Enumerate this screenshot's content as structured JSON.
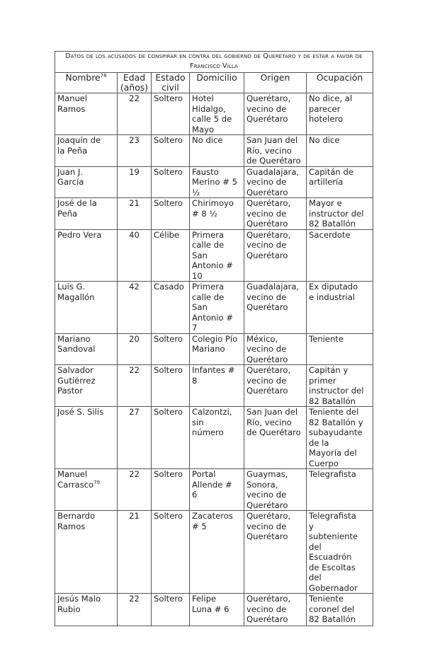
{
  "title": "Datos de los acusados de conspirar en contra del gobierno de Queretaro y de estar a favor de Francisco Villa",
  "headers": {
    "nombre": "Nombre",
    "nombre_note": "78",
    "edad": "Edad\n(años)",
    "estado": "Estado\ncivil",
    "domicilio": "Domicilio",
    "origen": "Origen",
    "ocupacion": "Ocupación"
  },
  "rows": [
    {
      "nombre": "Manuel\nRamos",
      "edad": "22",
      "estado": "Soltero",
      "domicilio": "Hotel\nHidalgo,\ncalle 5 de\nMayo",
      "origen": "Querétaro,\nvecino de\nQuerétaro",
      "ocupacion": "No dice, al\nparecer\nhotelero"
    },
    {
      "nombre": "Joaquín      de\nla Peña",
      "edad": "23",
      "estado": "Soltero",
      "domicilio": "No dice",
      "origen": "San Juan del\nRío, vecino\nde Querétaro",
      "ocupacion": "No dice"
    },
    {
      "nombre": "Juan        J.\nGarcía",
      "edad": "19",
      "estado": "Soltero",
      "domicilio": "Fausto\nMerino # 5\n½",
      "origen": "Guadalajara,\nvecino de\nQuerétaro",
      "ocupacion": "Capitán de\nartillería"
    },
    {
      "nombre": "José   de   la\nPeña",
      "edad": "21",
      "estado": "Soltero",
      "domicilio": "Chirimoyo\n# 8 ½",
      "origen": "Querétaro,\nvecino de\nQuerétaro",
      "ocupacion": "Mayor e\ninstructor del\n82 Batallón"
    },
    {
      "nombre": "Pedro Vera",
      "edad": "40",
      "estado": "Célibe",
      "domicilio": "Primera\ncalle de\nSan\nAntonio #\n10",
      "origen": "Querétaro,\nvecino de\nQuerétaro",
      "ocupacion": "Sacerdote"
    },
    {
      "nombre": "Luis        G.\nMagallón",
      "edad": "42",
      "estado": "Casado",
      "domicilio": "Primera\ncalle de\nSan\nAntonio #\n7",
      "origen": "Guadalajara,\nvecino de\nQuerétaro",
      "ocupacion": "Ex diputado\ne industrial"
    },
    {
      "nombre": "Mariano\nSandoval",
      "edad": "20",
      "estado": "Soltero",
      "domicilio": "Colegio Pío\nMariano",
      "origen": "México,\nvecino de\nQuerétaro",
      "ocupacion": "Teniente"
    },
    {
      "nombre": "Salvador\nGutiérrez\nPastor",
      "edad": "22",
      "estado": "Soltero",
      "domicilio": "Infantes #\n8",
      "origen": "Querétaro,\nvecino de\nQuerétaro",
      "ocupacion": "Capitán y\nprimer\ninstructor del\n82 Batallón"
    },
    {
      "nombre": "José S. Silis",
      "edad": "27",
      "estado": "Soltero",
      "domicilio": "Calzontzi,\nsin\nnúmero",
      "origen": "San Juan del\nRío, vecino\nde Querétaro",
      "ocupacion": "Teniente del\n82 Batallón y\nsubayudante\nde la\nMayoría del\nCuerpo"
    },
    {
      "nombre": "Manuel\nCarrasco",
      "nombre_note": "79",
      "edad": "22",
      "estado": "Soltero",
      "domicilio": "Portal\nAllende #\n6",
      "origen": "Guaymas,\nSonora,\nvecino de\nQuerétaro",
      "ocupacion": "Telegrafista"
    },
    {
      "nombre": "Bernardo\nRamos",
      "edad": "21",
      "estado": "Soltero",
      "domicilio": "Zacateros\n# 5",
      "origen": "Querétaro,\nvecino de\nQuerétaro",
      "ocupacion": "Telegrafista\ny\nsubteniente\ndel\nEscuadrón\nde Escoltas\ndel\nGobernador"
    },
    {
      "nombre": "Jesús      Malo\nRubio",
      "edad": "22",
      "estado": "Soltero",
      "domicilio": "Felipe\nLuna # 6",
      "origen": "Querétaro,\nvecino de\nQuerétaro",
      "ocupacion": "Teniente\ncoronel del\n82 Batallón"
    }
  ]
}
